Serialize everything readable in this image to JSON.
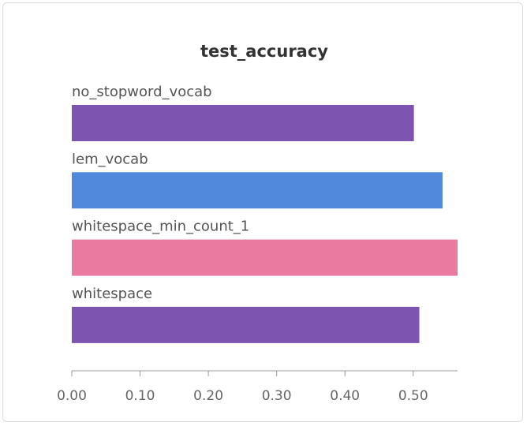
{
  "chart_data": {
    "type": "bar",
    "orientation": "horizontal",
    "title": "test_accuracy",
    "categories": [
      "no_stopword_vocab",
      "lem_vocab",
      "whitespace_min_count_1",
      "whitespace"
    ],
    "values": [
      0.501,
      0.543,
      0.565,
      0.509
    ],
    "colors": [
      "#7e54b1",
      "#5189dd",
      "#ea7ba0",
      "#7e54b1"
    ],
    "xlim": [
      0,
      0.565
    ],
    "xticks": [
      0.0,
      0.1,
      0.2,
      0.3,
      0.4,
      0.5
    ],
    "xtick_labels": [
      "0.00",
      "0.10",
      "0.20",
      "0.30",
      "0.40",
      "0.50"
    ],
    "xlabel": "",
    "ylabel": "",
    "grid": false,
    "legend": "none"
  }
}
